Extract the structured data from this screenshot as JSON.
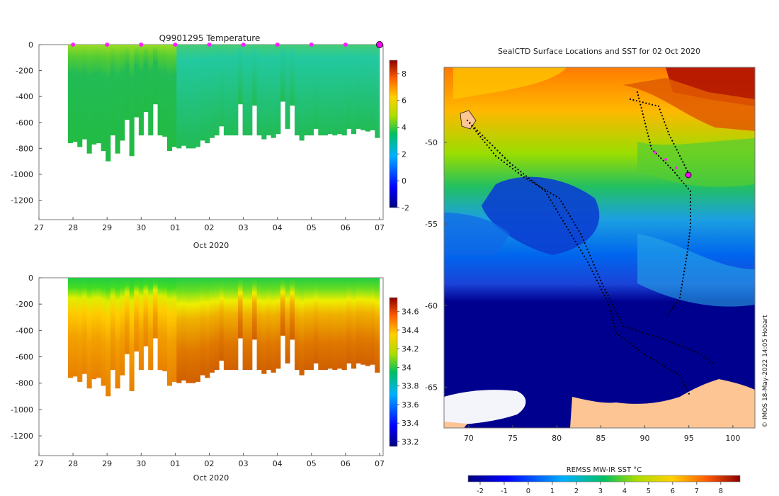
{
  "chart_data": [
    {
      "type": "heatmap",
      "title": "Q9901295  Temperature",
      "xlabel": "Oct 2020",
      "x_ticks": [
        "27",
        "28",
        "29",
        "30",
        "01",
        "02",
        "03",
        "04",
        "05",
        "06",
        "07"
      ],
      "y_ticks": [
        0,
        -200,
        -400,
        -600,
        -800,
        -1000,
        -1200
      ],
      "ylim": [
        -1350,
        0
      ],
      "colorbar": {
        "ticks": [
          8,
          6,
          4,
          2,
          0,
          -2
        ],
        "range": [
          -2,
          9
        ]
      },
      "profile_bottoms": [
        -760,
        -750,
        -790,
        -730,
        -840,
        -770,
        -760,
        -820,
        -900,
        -700,
        -840,
        -740,
        -580,
        -860,
        -560,
        -700,
        -520,
        -700,
        -460,
        -700,
        -710,
        -820,
        -790,
        -800,
        -780,
        -800,
        -800,
        -790,
        -740,
        -760,
        -720,
        -700,
        -630,
        -700,
        -700,
        -700,
        -460,
        -700,
        -700,
        -470,
        -700,
        -730,
        -700,
        -720,
        -690,
        -440,
        -650,
        -470,
        -700,
        -740,
        -700,
        -700,
        -650,
        -700,
        -700,
        -690,
        -700,
        -690,
        -700,
        -650,
        -690,
        -650,
        -660,
        -670,
        -660,
        -720
      ],
      "profile_columns": [
        {
          "start": "27.85",
          "depth": 760
        },
        {
          "start": "29.0",
          "depth": 900
        },
        {
          "start": "30.0",
          "depth": 870
        },
        {
          "start": "01",
          "depth": 820
        },
        {
          "start": "02",
          "depth": 800
        },
        {
          "start": "03",
          "depth": 700
        },
        {
          "start": "04",
          "depth": 700
        },
        {
          "start": "05",
          "depth": 710
        },
        {
          "start": "06",
          "depth": 720
        },
        {
          "start": "07",
          "depth": 700
        }
      ],
      "surface_markers": [
        "28",
        "29",
        "30",
        "01",
        "02",
        "03",
        "04",
        "05",
        "06"
      ],
      "current_marker": "07"
    },
    {
      "type": "heatmap",
      "title": "",
      "xlabel": "Oct 2020",
      "x_ticks": [
        "27",
        "28",
        "29",
        "30",
        "01",
        "02",
        "03",
        "04",
        "05",
        "06",
        "07"
      ],
      "y_ticks": [
        0,
        -200,
        -400,
        -600,
        -800,
        -1000,
        -1200
      ],
      "ylim": [
        -1350,
        0
      ],
      "colorbar": {
        "ticks": [
          34.6,
          34.4,
          34.2,
          34,
          33.8,
          33.6,
          33.4,
          33.2
        ],
        "range": [
          33.15,
          34.75
        ]
      }
    },
    {
      "type": "heatmap",
      "title": "SealCTD Surface Locations and SST for 02 Oct 2020",
      "xlabel": "",
      "ylabel": "",
      "x_ticks": [
        70,
        75,
        80,
        85,
        90,
        95,
        100
      ],
      "y_ticks": [
        -50,
        -55,
        -60,
        -65
      ],
      "xlim": [
        67.2,
        102.5
      ],
      "ylim": [
        -67.5,
        -45.4
      ],
      "colorbar": {
        "label": "REMSS MW-IR SST °C",
        "ticks": [
          -2,
          -1,
          0,
          1,
          2,
          3,
          4,
          5,
          6,
          7,
          8
        ],
        "range": [
          -2.5,
          8.8
        ]
      }
    }
  ],
  "credit": "© IMOS 18-May-2022 14:05 Hobart"
}
